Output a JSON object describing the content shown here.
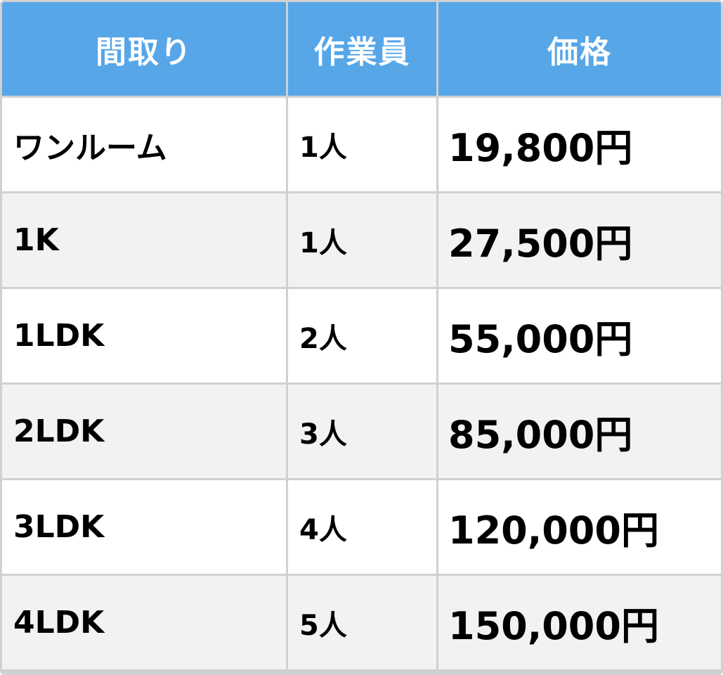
{
  "table": {
    "headers": {
      "layout": "間取り",
      "staff": "作業員",
      "price": "価格"
    },
    "rows": [
      {
        "layout": "ワンルーム",
        "staff": "1人",
        "price": "19,800円"
      },
      {
        "layout": "1K",
        "staff": "1人",
        "price": "27,500円"
      },
      {
        "layout": "1LDK",
        "staff": "2人",
        "price": "55,000円"
      },
      {
        "layout": "2LDK",
        "staff": "3人",
        "price": "85,000円"
      },
      {
        "layout": "3LDK",
        "staff": "4人",
        "price": "120,000円"
      },
      {
        "layout": "4LDK",
        "staff": "5人",
        "price": "150,000円"
      }
    ]
  },
  "colors": {
    "header_bg": "#56a6e8",
    "header_text": "#ffffff",
    "row_odd_bg": "#ffffff",
    "row_even_bg": "#f2f2f2",
    "grid_lines": "#d0d0d0"
  }
}
